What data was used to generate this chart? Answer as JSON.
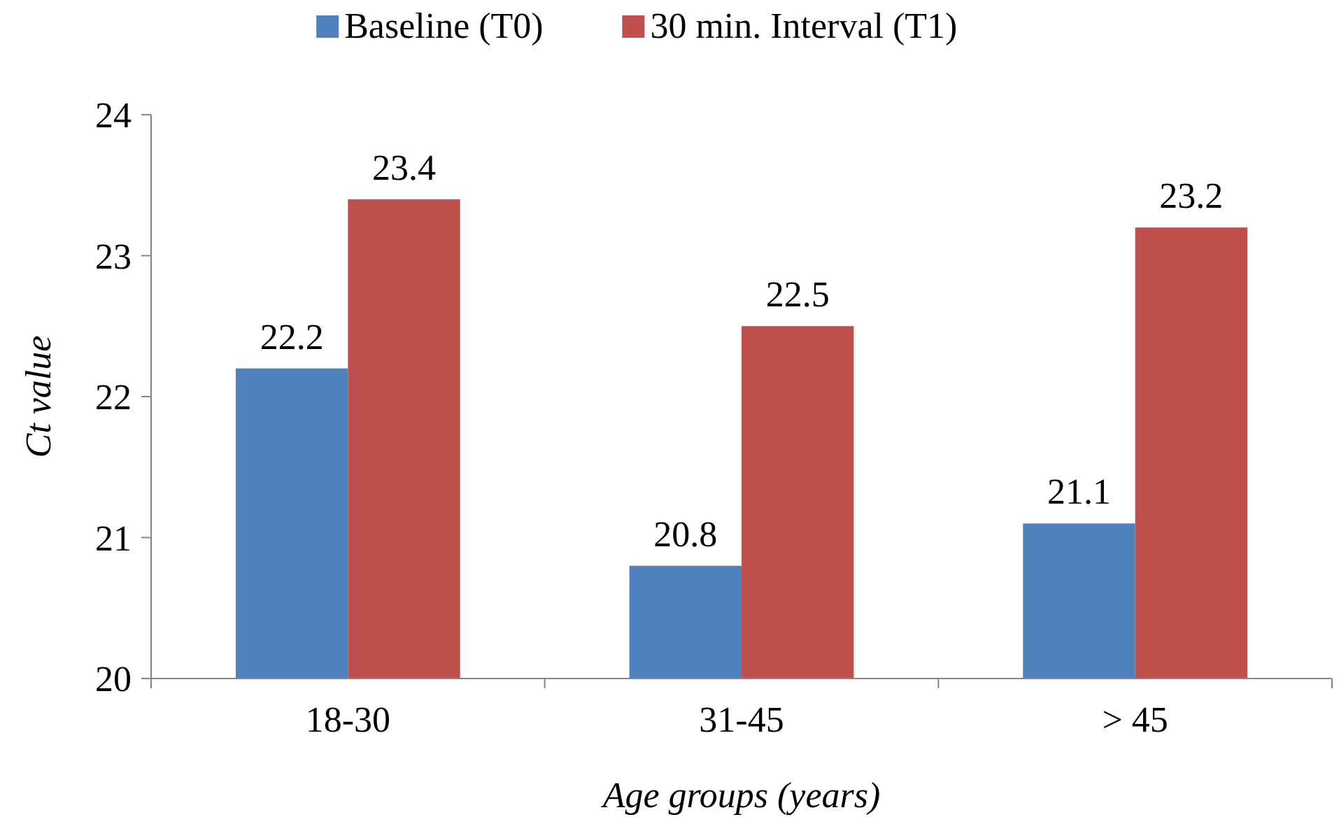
{
  "chart_data": {
    "type": "bar",
    "xlabel": "Age groups (years)",
    "ylabel": "Ct value",
    "categories": [
      "18-30",
      "31-45",
      "> 45"
    ],
    "series": [
      {
        "name": "Baseline (T0)",
        "color": "#4f81bd",
        "values": [
          22.2,
          20.8,
          21.1
        ]
      },
      {
        "name": "30 min. Interval (T1)",
        "color": "#c0504d",
        "values": [
          23.4,
          22.5,
          23.2
        ]
      }
    ],
    "ylim": [
      20,
      24
    ],
    "yticks": [
      20,
      21,
      22,
      23,
      24
    ],
    "data_labels": true,
    "legend": "top",
    "grid": false
  }
}
